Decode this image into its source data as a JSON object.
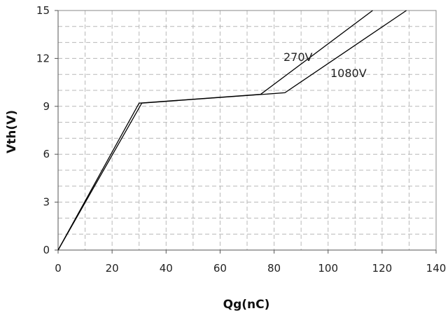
{
  "chart_data": {
    "type": "line",
    "title": "",
    "xlabel": "Qg(nC)",
    "ylabel": "Vth(V)",
    "xlim": [
      0,
      140
    ],
    "ylim": [
      0,
      15
    ],
    "x_ticks": [
      0,
      20,
      40,
      60,
      80,
      100,
      120,
      140
    ],
    "y_ticks": [
      0,
      3,
      6,
      9,
      12,
      15
    ],
    "x_tick_labels": [
      "0",
      "20",
      "40",
      "60",
      "80",
      "100",
      "120",
      "140"
    ],
    "y_tick_labels": [
      "0",
      "3",
      "6",
      "9",
      "12",
      "15"
    ],
    "grid": true,
    "grid_style": "dashed",
    "legend": "none (series labeled inline)",
    "series": [
      {
        "name": "270V",
        "color": "#000000",
        "x": [
          0,
          30,
          75,
          116.5
        ],
        "y": [
          0,
          9.2,
          9.75,
          15
        ]
      },
      {
        "name": "1080V",
        "color": "#000000",
        "x": [
          0,
          31,
          84,
          129
        ],
        "y": [
          0,
          9.2,
          9.85,
          15
        ]
      }
    ]
  }
}
